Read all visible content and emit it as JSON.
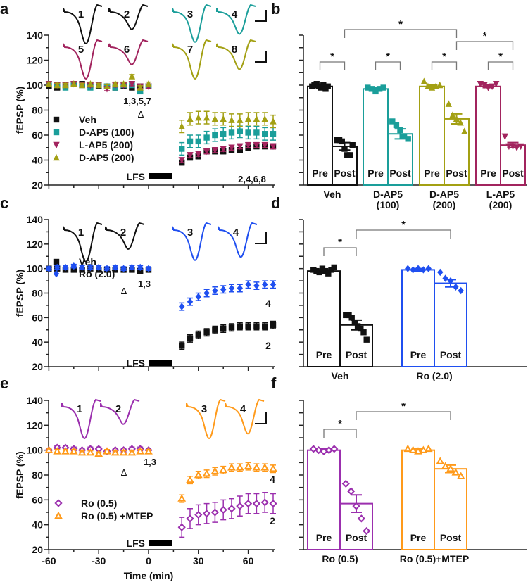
{
  "figure": {
    "y_axis_label": "fEPSP (%)",
    "x_axis_label": "Time (min)",
    "stim_label": "LFS"
  },
  "chart_data": [
    {
      "panel": "a",
      "type": "scatter",
      "ylim": [
        20,
        140
      ],
      "yticks": [
        20,
        40,
        60,
        80,
        100,
        120,
        140
      ],
      "xlim": [
        -60,
        75
      ],
      "xticks": [
        -60,
        -30,
        0,
        30,
        60
      ],
      "show_xticklabels": false,
      "x": [
        -60,
        -55,
        -50,
        -45,
        -40,
        -35,
        -30,
        -25,
        -20,
        -15,
        -10,
        -5,
        0,
        20,
        25,
        30,
        35,
        40,
        45,
        50,
        55,
        60,
        65,
        70,
        75
      ],
      "series": [
        {
          "name": "Veh",
          "color": "#111111",
          "marker": "square",
          "sem": 2,
          "values": [
            99,
            98,
            100,
            101,
            101,
            100,
            99,
            99,
            98,
            99,
            98,
            99,
            99,
            38,
            42,
            43,
            47,
            47,
            47,
            48,
            48,
            50,
            51,
            51,
            51
          ]
        },
        {
          "name": "D-AP5 (100)",
          "color": "#1a9e9a",
          "marker": "square",
          "sem": 5,
          "values": [
            101,
            100,
            98,
            101,
            100,
            98,
            100,
            99,
            98,
            100,
            100,
            95,
            99,
            49,
            55,
            55,
            58,
            60,
            61,
            62,
            63,
            62,
            62,
            61,
            61
          ]
        },
        {
          "name": "L-AP5 (200)",
          "color": "#a2245e",
          "marker": "tri-down",
          "sem": 2,
          "values": [
            101,
            100,
            100,
            101,
            100,
            100,
            100,
            97,
            100,
            100,
            101,
            99,
            99,
            40,
            44,
            45,
            47,
            48,
            49,
            50,
            51,
            52,
            52,
            52,
            51
          ]
        },
        {
          "name": "D-AP5 (200)",
          "color": "#a3a013",
          "marker": "tri-up",
          "sem": 5,
          "values": [
            101,
            100,
            100,
            101,
            100,
            101,
            100,
            99,
            101,
            101,
            107,
            98,
            101,
            67,
            73,
            74,
            74,
            73,
            73,
            72,
            72,
            73,
            73,
            73,
            71
          ]
        }
      ],
      "annotations": {
        "baseline_label": "1,3,5,7",
        "delta": "Δ",
        "post_label": "2,4,6,8"
      },
      "traces": [
        {
          "label": "1",
          "color": "#111111",
          "depth": 1.0
        },
        {
          "label": "2",
          "color": "#111111",
          "depth": 0.55
        },
        {
          "label": "3",
          "color": "#1a9e9a",
          "depth": 0.95
        },
        {
          "label": "4",
          "color": "#1a9e9a",
          "depth": 0.7
        },
        {
          "label": "5",
          "color": "#a2245e",
          "depth": 1.0
        },
        {
          "label": "6",
          "color": "#a2245e",
          "depth": 0.55
        },
        {
          "label": "7",
          "color": "#a3a013",
          "depth": 1.0
        },
        {
          "label": "8",
          "color": "#a3a013",
          "depth": 0.7
        }
      ]
    },
    {
      "panel": "b",
      "type": "bar",
      "ylim": [
        20,
        140
      ],
      "bar_labels": [
        "Pre",
        "Post"
      ],
      "groups": [
        {
          "label": [
            "Veh"
          ],
          "color": "#111111",
          "marker": "square",
          "pre": 99,
          "post": 51,
          "pre_sem": 1,
          "post_sem": 3,
          "pre_points": [
            99,
            100,
            101,
            99,
            98,
            100,
            97,
            99
          ],
          "post_points": [
            56,
            56,
            55,
            49,
            44,
            44,
            52
          ]
        },
        {
          "label": [
            "D-AP5",
            "(100)"
          ],
          "color": "#1a9e9a",
          "marker": "square",
          "pre": 97,
          "post": 61,
          "pre_sem": 1,
          "post_sem": 4,
          "pre_points": [
            98,
            97,
            95,
            97,
            98
          ],
          "post_points": [
            71,
            68,
            64,
            59,
            57
          ]
        },
        {
          "label": [
            "D-AP5",
            "(200)"
          ],
          "color": "#a3a013",
          "marker": "tri-up",
          "pre": 99,
          "post": 73,
          "pre_sem": 1,
          "post_sem": 4,
          "pre_points": [
            103,
            99,
            98,
            99,
            100
          ],
          "post_points": [
            85,
            76,
            73,
            70,
            63
          ]
        },
        {
          "label": [
            "L-AP5",
            "(200)"
          ],
          "color": "#a2245e",
          "marker": "tri-down",
          "pre": 99,
          "post": 52,
          "pre_sem": 1,
          "post_sem": 2,
          "pre_points": [
            101,
            100,
            98,
            99,
            101
          ],
          "post_points": [
            59,
            51,
            51,
            50,
            51
          ]
        }
      ],
      "significance": [
        {
          "from": [
            0,
            0
          ],
          "to": [
            0,
            1
          ],
          "label": "*",
          "level": 1
        },
        {
          "from": [
            1,
            0
          ],
          "to": [
            1,
            1
          ],
          "label": "*",
          "level": 1
        },
        {
          "from": [
            2,
            0
          ],
          "to": [
            2,
            1
          ],
          "label": "*",
          "level": 1
        },
        {
          "from": [
            3,
            0
          ],
          "to": [
            3,
            1
          ],
          "label": "*",
          "level": 1
        },
        {
          "from": [
            0,
            1
          ],
          "to": [
            2,
            1
          ],
          "label": "*",
          "level": 3
        },
        {
          "from": [
            2,
            1
          ],
          "to": [
            3,
            1
          ],
          "label": "*",
          "level": 2
        }
      ]
    },
    {
      "panel": "c",
      "type": "scatter",
      "ylim": [
        20,
        140
      ],
      "yticks": [
        20,
        40,
        60,
        80,
        100,
        120,
        140
      ],
      "xlim": [
        -60,
        75
      ],
      "xticks": [
        -60,
        -30,
        0,
        30,
        60
      ],
      "show_xticklabels": false,
      "x": [
        -60,
        -55,
        -50,
        -45,
        -40,
        -35,
        -30,
        -25,
        -20,
        -15,
        -10,
        -5,
        0,
        20,
        25,
        30,
        35,
        40,
        45,
        50,
        55,
        60,
        65,
        70,
        75
      ],
      "series": [
        {
          "name": "Veh",
          "color": "#111111",
          "marker": "square",
          "sem": 3,
          "values": [
            100,
            100,
            99,
            99,
            99,
            100,
            99,
            99,
            99,
            99,
            99,
            98,
            99,
            37,
            43,
            46,
            48,
            50,
            51,
            52,
            53,
            53,
            53,
            53,
            54
          ]
        },
        {
          "name": "Ro (2.0)",
          "color": "#1f4ff0",
          "marker": "diamond",
          "sem": 3,
          "values": [
            100,
            101,
            101,
            102,
            101,
            101,
            101,
            100,
            101,
            100,
            101,
            101,
            100,
            69,
            73,
            77,
            80,
            82,
            83,
            84,
            84,
            87,
            86,
            87,
            87
          ]
        }
      ],
      "annotations": {
        "baseline_label": "1,3",
        "delta": "Δ",
        "post_labels": [
          "4",
          "2"
        ]
      },
      "traces": [
        {
          "label": "1",
          "color": "#111111",
          "depth": 1.0
        },
        {
          "label": "2",
          "color": "#111111",
          "depth": 0.6
        },
        {
          "label": "3",
          "color": "#1f4ff0",
          "depth": 0.95
        },
        {
          "label": "4",
          "color": "#1f4ff0",
          "depth": 0.85
        }
      ]
    },
    {
      "panel": "d",
      "type": "bar",
      "ylim": [
        20,
        140
      ],
      "bar_labels": [
        "Pre",
        "Post"
      ],
      "groups": [
        {
          "label": [
            "Veh"
          ],
          "color": "#111111",
          "marker": "square",
          "pre": 98,
          "post": 54,
          "pre_sem": 1,
          "post_sem": 4,
          "pre_points": [
            99,
            98,
            97,
            100,
            98,
            96,
            99,
            101
          ],
          "post_points": [
            62,
            62,
            60,
            56,
            53,
            51,
            48,
            42
          ]
        },
        {
          "label": [
            "Ro (2.0)"
          ],
          "color": "#1f4ff0",
          "marker": "diamond",
          "pre": 99,
          "post": 88,
          "pre_sem": 1,
          "post_sem": 3,
          "pre_points": [
            100,
            99,
            100,
            99,
            100
          ],
          "post_points": [
            97,
            92,
            90,
            85,
            82
          ]
        }
      ],
      "significance": [
        {
          "from": [
            0,
            0
          ],
          "to": [
            0,
            1
          ],
          "label": "*",
          "level": 1
        },
        {
          "from": [
            0,
            1
          ],
          "to": [
            1,
            1
          ],
          "label": "*",
          "level": 2
        }
      ]
    },
    {
      "panel": "e",
      "type": "scatter",
      "ylim": [
        20,
        140
      ],
      "yticks": [
        20,
        40,
        60,
        80,
        100,
        120,
        140
      ],
      "xlim": [
        -60,
        75
      ],
      "xticks": [
        -60,
        -30,
        0,
        30,
        60
      ],
      "show_xticklabels": true,
      "x": [
        -60,
        -55,
        -50,
        -45,
        -40,
        -35,
        -30,
        -25,
        -20,
        -15,
        -10,
        -5,
        0,
        20,
        25,
        30,
        35,
        40,
        45,
        50,
        55,
        60,
        65,
        70,
        75
      ],
      "series": [
        {
          "name": "Ro (0.5)",
          "color": "#9b2fae",
          "marker": "diamond-open",
          "sem": 8,
          "values": [
            100,
            102,
            102,
            101,
            100,
            101,
            101,
            99,
            100,
            100,
            101,
            101,
            100,
            38,
            45,
            48,
            49,
            50,
            52,
            53,
            55,
            57,
            57,
            58,
            57
          ]
        },
        {
          "name": "Ro (0.5) +MTEP",
          "color": "#ff9a1a",
          "marker": "tri-open",
          "sem": 3,
          "values": [
            100,
            99,
            99,
            99,
            98,
            98,
            97,
            99,
            98,
            98,
            98,
            99,
            99,
            61,
            76,
            80,
            81,
            83,
            84,
            86,
            86,
            87,
            86,
            86,
            85
          ]
        }
      ],
      "annotations": {
        "baseline_label": "1,3",
        "delta": "Δ",
        "post_labels": [
          "4",
          "2"
        ]
      },
      "traces": [
        {
          "label": "1",
          "color": "#9b2fae",
          "depth": 1.0
        },
        {
          "label": "2",
          "color": "#9b2fae",
          "depth": 0.55
        },
        {
          "label": "3",
          "color": "#ff9a1a",
          "depth": 1.0
        },
        {
          "label": "4",
          "color": "#ff9a1a",
          "depth": 0.85
        }
      ]
    },
    {
      "panel": "f",
      "type": "bar",
      "ylim": [
        20,
        140
      ],
      "bar_labels": [
        "Pre",
        "Post"
      ],
      "groups": [
        {
          "label": [
            "Ro (0.5)"
          ],
          "color": "#9b2fae",
          "marker": "diamond-open",
          "pre": 100,
          "post": 57,
          "pre_sem": 1,
          "post_sem": 7,
          "pre_points": [
            101,
            100,
            99,
            100,
            101
          ],
          "post_points": [
            73,
            67,
            55,
            45,
            35
          ]
        },
        {
          "label": [
            "Ro (0.5)+MTEP"
          ],
          "color": "#ff9a1a",
          "marker": "tri-open",
          "pre": 100,
          "post": 85,
          "pre_sem": 1,
          "post_sem": 3,
          "pre_points": [
            101,
            100,
            99,
            100,
            101
          ],
          "post_points": [
            91,
            87,
            85,
            82,
            79
          ]
        }
      ],
      "significance": [
        {
          "from": [
            0,
            0
          ],
          "to": [
            0,
            1
          ],
          "label": "*",
          "level": 1
        },
        {
          "from": [
            0,
            1
          ],
          "to": [
            1,
            1
          ],
          "label": "*",
          "level": 2
        }
      ]
    }
  ]
}
